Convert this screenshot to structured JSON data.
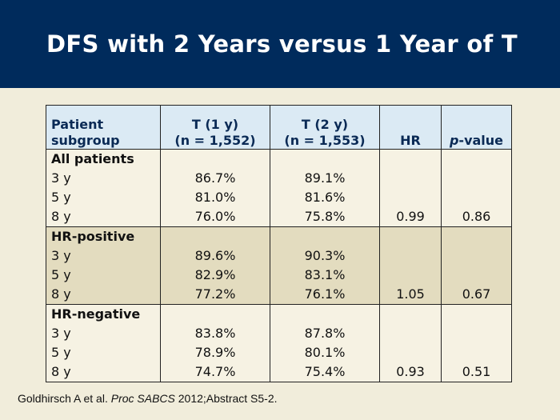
{
  "title": "DFS with 2 Years versus 1 Year of T",
  "table": {
    "headers": {
      "col1": [
        "Patient",
        "subgroup"
      ],
      "col2": [
        "T (1 y)",
        "(n = 1,552)"
      ],
      "col3": [
        "T (2 y)",
        "(n = 1,553)"
      ],
      "col4": "HR",
      "col5_italic": "p",
      "col5_rest": "-value"
    },
    "groups": [
      {
        "name": "All patients",
        "rows": [
          {
            "label": "3 y",
            "t1": "86.7%",
            "t2": "89.1%"
          },
          {
            "label": "5 y",
            "t1": "81.0%",
            "t2": "81.6%"
          },
          {
            "label": "8 y",
            "t1": "76.0%",
            "t2": "75.8%"
          }
        ],
        "hr": "0.99",
        "p": "0.86"
      },
      {
        "name": "HR-positive",
        "rows": [
          {
            "label": "3 y",
            "t1": "89.6%",
            "t2": "90.3%"
          },
          {
            "label": "5 y",
            "t1": "82.9%",
            "t2": "83.1%"
          },
          {
            "label": "8 y",
            "t1": "77.2%",
            "t2": "76.1%"
          }
        ],
        "hr": "1.05",
        "p": "0.67"
      },
      {
        "name": "HR-negative",
        "rows": [
          {
            "label": "3 y",
            "t1": "83.8%",
            "t2": "87.8%"
          },
          {
            "label": "5 y",
            "t1": "78.9%",
            "t2": "80.1%"
          },
          {
            "label": "8 y",
            "t1": "74.7%",
            "t2": "75.4%"
          }
        ],
        "hr": "0.93",
        "p": "0.51"
      }
    ]
  },
  "citation": {
    "authors": "Goldhirsch A et al.",
    "journal": "Proc SABCS",
    "rest": "2012;Abstract S5-2."
  },
  "colors": {
    "title_bar": "#002b5c",
    "background": "#f1eddb",
    "header_bg": "#dbeaf4",
    "shaded_group_bg": "#e3dcbf"
  }
}
